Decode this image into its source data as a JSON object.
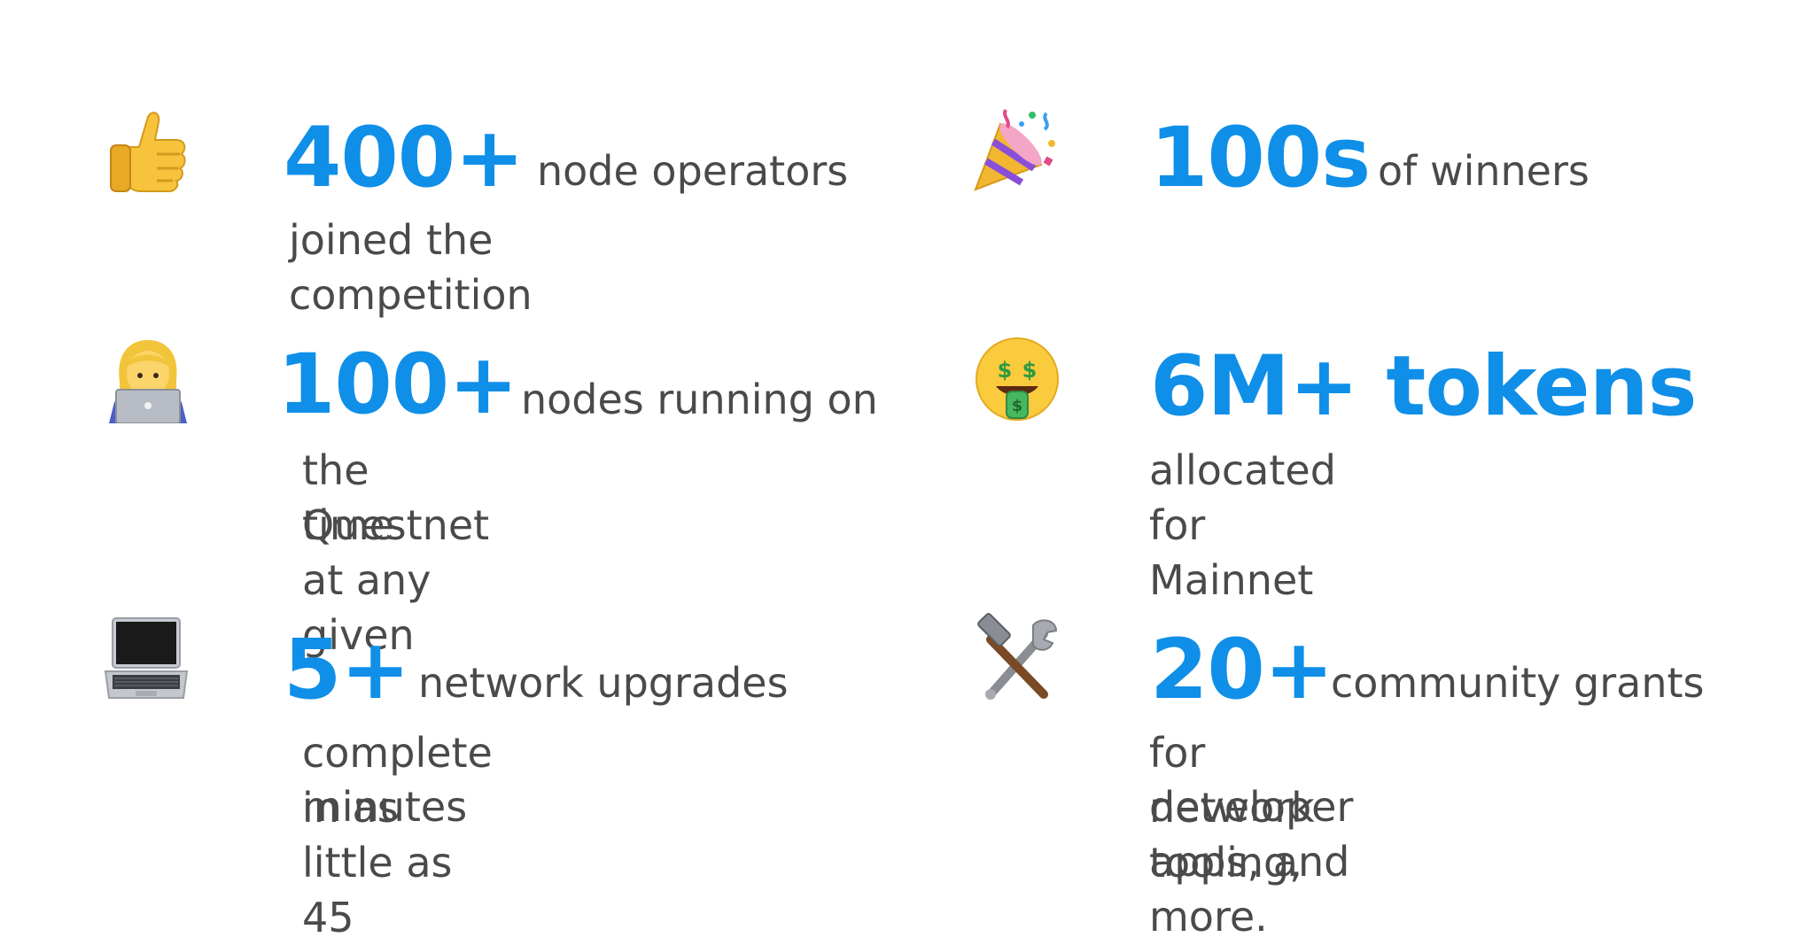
{
  "stats": [
    {
      "icon": "thumbs-up-icon",
      "highlight": "400+",
      "inline": "node operators",
      "rest": [
        "joined the competition"
      ]
    },
    {
      "icon": "party-popper-icon",
      "highlight": "100s",
      "inline": "of winners",
      "rest": []
    },
    {
      "icon": "woman-technologist-icon",
      "highlight": "100+",
      "inline": "nodes running on",
      "rest": [
        "the Questnet at any given",
        "time"
      ]
    },
    {
      "icon": "money-mouth-face-icon",
      "highlight": "6M+ tokens",
      "inline": "",
      "rest": [
        "allocated for Mainnet"
      ]
    },
    {
      "icon": "laptop-icon",
      "highlight": "5+",
      "inline": "network upgrades",
      "rest": [
        "complete in as little as 45",
        "minutes"
      ]
    },
    {
      "icon": "hammer-and-wrench-icon",
      "highlight": "20+",
      "inline": "community grants",
      "rest": [
        "for network tooling,",
        "developer apps, and more."
      ]
    }
  ],
  "colors": {
    "accent": "#0f8fe8",
    "text": "#4a4a4a",
    "background": "#ffffff"
  }
}
